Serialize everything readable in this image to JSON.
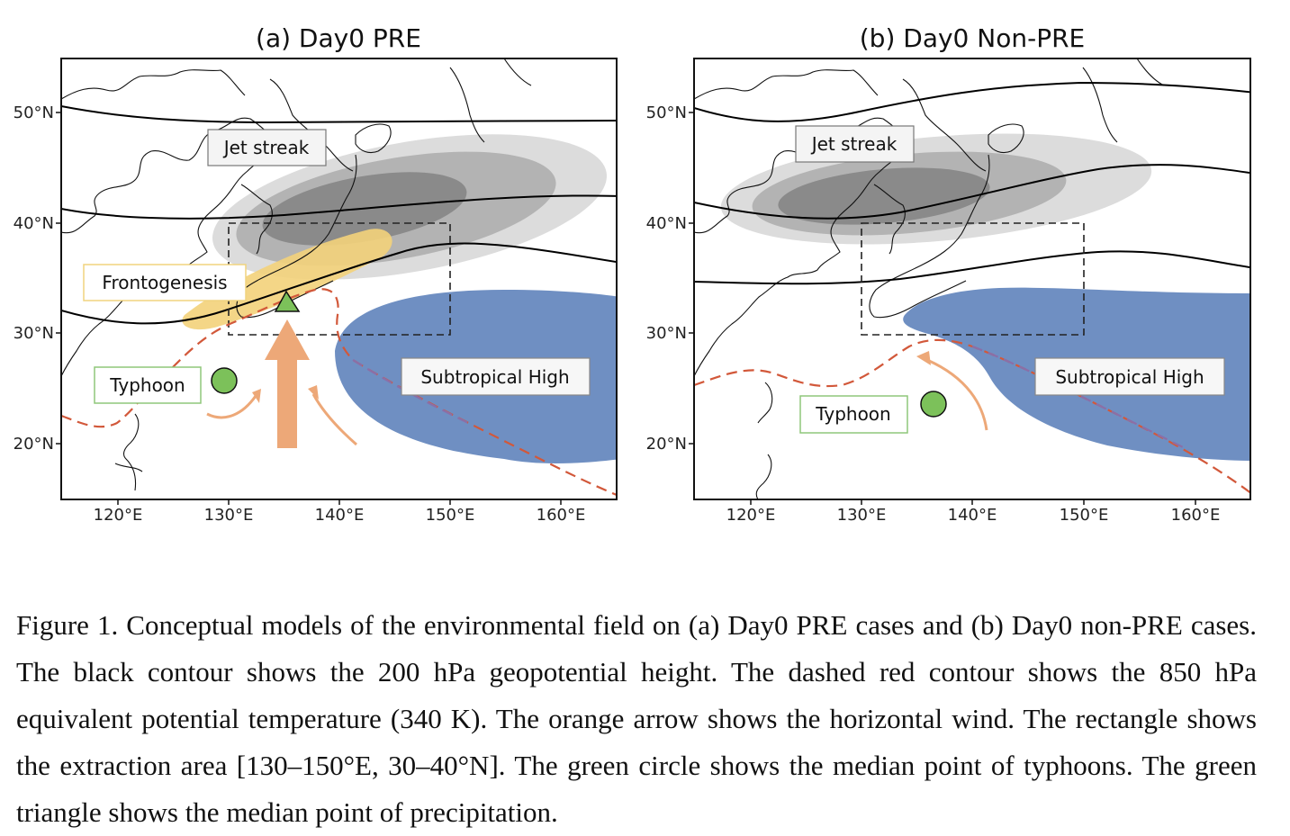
{
  "panels": [
    {
      "title": "(a) Day0 PRE",
      "labels": {
        "jet_streak": "Jet streak",
        "frontogenesis": "Frontogenesis",
        "typhoon": "Typhoon",
        "subtropical_high": "Subtropical High"
      }
    },
    {
      "title": "(b) Day0 Non-PRE",
      "labels": {
        "jet_streak": "Jet streak",
        "typhoon": "Typhoon",
        "subtropical_high": "Subtropical High"
      }
    }
  ],
  "axes": {
    "lat_ticks": [
      "50°N",
      "40°N",
      "30°N",
      "20°N"
    ],
    "lon_ticks": [
      "120°E",
      "130°E",
      "140°E",
      "150°E",
      "160°E"
    ]
  },
  "colors": {
    "subtropical_high": "#6f8fc2",
    "jet_light": "#dcdcdc",
    "jet_mid": "#b3b3b3",
    "jet_dark": "#8a8a8a",
    "frontogenesis": "#f3d27a",
    "theta_e_contour": "#d2583a",
    "wind_arrow": "#eda878",
    "typhoon_marker": "#7cc15a",
    "label_border_green": "#8fc77a",
    "label_border_yellow": "#f0d37f"
  },
  "caption": {
    "text": "Figure 1. Conceptual models of the environmental field on (a) Day0 PRE cases and (b) Day0 non-PRE cases. The black contour shows the 200 hPa geopotential height. The dashed red contour shows the 850 hPa equivalent potential temperature (340 K). The orange arrow shows the horizontal wind. The rectangle shows the extraction area [130–150°E, 30–40°N]. The green circle shows the median point of typhoons. The green triangle shows the median point of precipitation."
  }
}
